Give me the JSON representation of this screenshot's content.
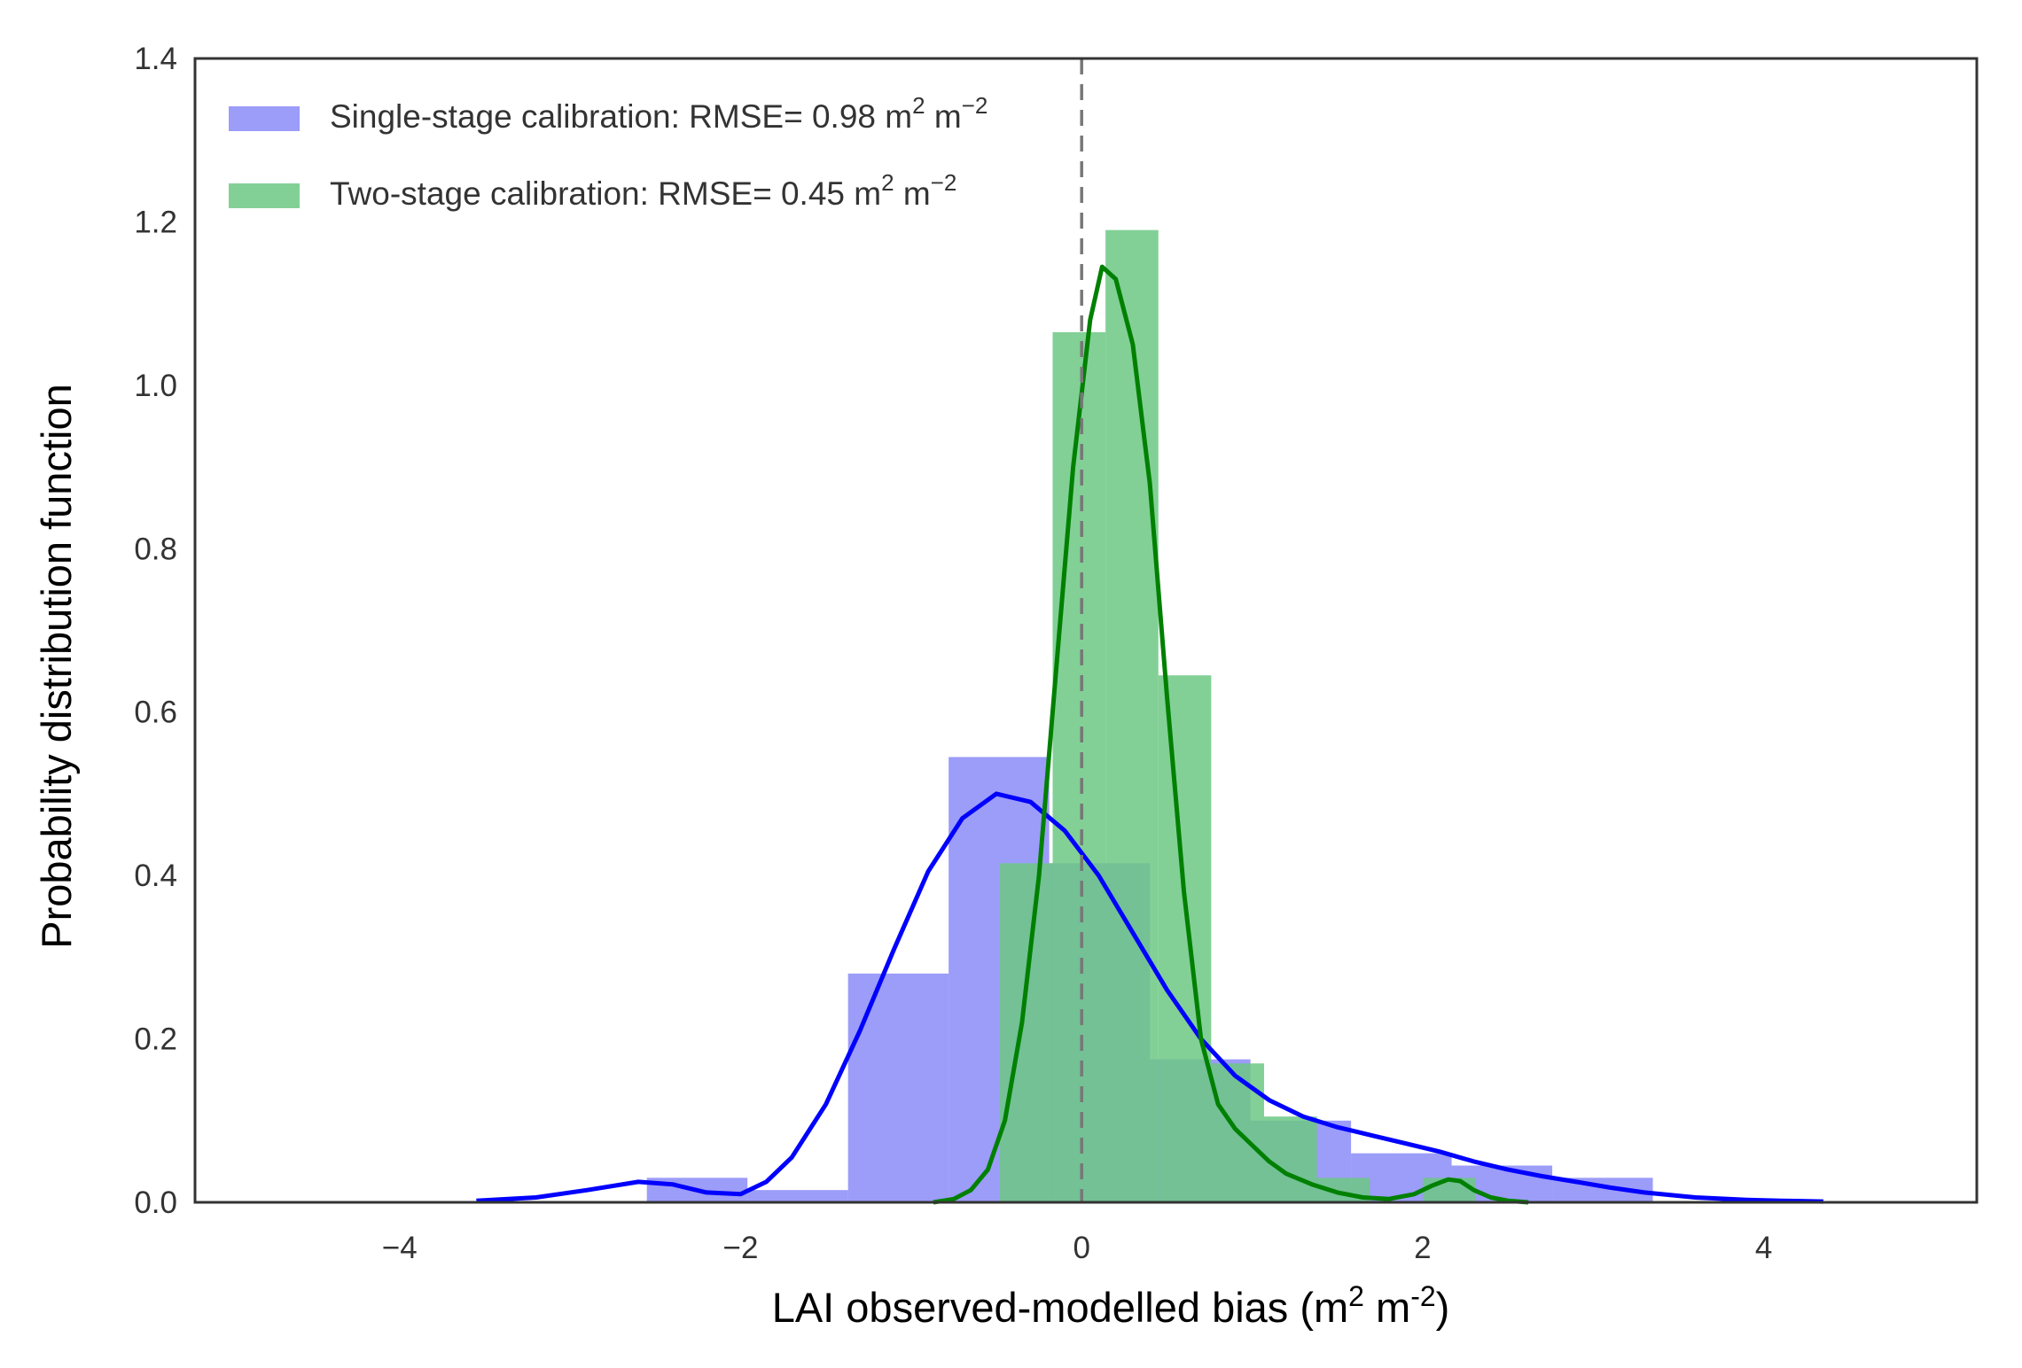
{
  "chart_data": {
    "type": "bar",
    "title": "",
    "xlabel": "LAI observed-modelled bias (m² m⁻²)",
    "xlabel_parts": {
      "main": "LAI observed-modelled bias (m",
      "sup1": "2",
      "mid": " m",
      "sup2": "-2",
      "end": ")"
    },
    "ylabel": "Probability distribution function",
    "xlim": [
      -5.2,
      5.25
    ],
    "ylim": [
      0,
      1.4
    ],
    "xticks": [
      -4,
      -2,
      0,
      2,
      4
    ],
    "xtick_labels": [
      "−4",
      "−2",
      "0",
      "2",
      "4"
    ],
    "yticks": [
      0.0,
      0.2,
      0.4,
      0.6,
      0.8,
      1.0,
      1.2,
      1.4
    ],
    "ytick_labels": [
      "0.0",
      "0.2",
      "0.4",
      "0.6",
      "0.8",
      "1.0",
      "1.2",
      "1.4"
    ],
    "reference_line_x": 0,
    "grid": false,
    "legend_position": "upper-left",
    "series": [
      {
        "name": "Single-stage calibration",
        "legend_main": "Single-stage calibration: RMSE= 0.98 m",
        "legend_sup1": "2",
        "legend_mid": " m",
        "legend_sup2": "−2",
        "color": "#0000ff",
        "hist_color": "#7b7bf7",
        "hist_bins": [
          {
            "x0": -2.55,
            "x1": -1.96,
            "y": 0.03
          },
          {
            "x0": -1.96,
            "x1": -1.37,
            "y": 0.015
          },
          {
            "x0": -1.37,
            "x1": -0.78,
            "y": 0.28
          },
          {
            "x0": -0.78,
            "x1": -0.19,
            "y": 0.545
          },
          {
            "x0": -0.19,
            "x1": 0.4,
            "y": 0.415
          },
          {
            "x0": 0.4,
            "x1": 0.99,
            "y": 0.175
          },
          {
            "x0": 0.99,
            "x1": 1.58,
            "y": 0.1
          },
          {
            "x0": 1.58,
            "x1": 2.17,
            "y": 0.06
          },
          {
            "x0": 2.17,
            "x1": 2.76,
            "y": 0.045
          },
          {
            "x0": 2.76,
            "x1": 3.35,
            "y": 0.03
          }
        ],
        "kde": {
          "x": [
            -3.55,
            -3.2,
            -2.9,
            -2.6,
            -2.4,
            -2.2,
            -2.0,
            -1.85,
            -1.7,
            -1.5,
            -1.3,
            -1.1,
            -0.9,
            -0.7,
            -0.5,
            -0.3,
            -0.1,
            0.1,
            0.3,
            0.5,
            0.7,
            0.9,
            1.1,
            1.3,
            1.5,
            1.7,
            1.9,
            2.1,
            2.3,
            2.5,
            2.7,
            2.9,
            3.1,
            3.3,
            3.6,
            3.9,
            4.1,
            4.35
          ],
          "y": [
            0.002,
            0.006,
            0.015,
            0.025,
            0.022,
            0.012,
            0.01,
            0.025,
            0.055,
            0.12,
            0.21,
            0.31,
            0.405,
            0.47,
            0.5,
            0.49,
            0.455,
            0.4,
            0.33,
            0.26,
            0.2,
            0.155,
            0.125,
            0.105,
            0.092,
            0.082,
            0.072,
            0.062,
            0.05,
            0.04,
            0.032,
            0.025,
            0.018,
            0.012,
            0.006,
            0.003,
            0.002,
            0.001
          ]
        }
      },
      {
        "name": "Two-stage calibration",
        "legend_main": "Two-stage calibration: RMSE= 0.45 m",
        "legend_sup1": "2",
        "legend_mid": " m",
        "legend_sup2": "−2",
        "color": "#008000",
        "hist_color": "#6cc884",
        "hist_bins": [
          {
            "x0": -0.48,
            "x1": -0.17,
            "y": 0.415
          },
          {
            "x0": -0.17,
            "x1": 0.14,
            "y": 1.065
          },
          {
            "x0": 0.14,
            "x1": 0.45,
            "y": 1.19
          },
          {
            "x0": 0.45,
            "x1": 0.76,
            "y": 0.645
          },
          {
            "x0": 0.76,
            "x1": 1.07,
            "y": 0.17
          },
          {
            "x0": 1.07,
            "x1": 1.38,
            "y": 0.105
          },
          {
            "x0": 1.38,
            "x1": 1.69,
            "y": 0.03
          },
          {
            "x0": 1.69,
            "x1": 2.0,
            "y": 0.0
          },
          {
            "x0": 2.0,
            "x1": 2.31,
            "y": 0.03
          }
        ],
        "kde": {
          "x": [
            -0.87,
            -0.75,
            -0.65,
            -0.55,
            -0.45,
            -0.35,
            -0.25,
            -0.15,
            -0.05,
            0.05,
            0.12,
            0.2,
            0.3,
            0.4,
            0.5,
            0.6,
            0.7,
            0.8,
            0.9,
            1.0,
            1.1,
            1.2,
            1.35,
            1.5,
            1.65,
            1.8,
            1.95,
            2.05,
            2.15,
            2.22,
            2.3,
            2.4,
            2.5,
            2.62
          ],
          "y": [
            0.0,
            0.004,
            0.015,
            0.04,
            0.1,
            0.22,
            0.4,
            0.65,
            0.9,
            1.08,
            1.145,
            1.13,
            1.05,
            0.88,
            0.62,
            0.38,
            0.2,
            0.12,
            0.09,
            0.07,
            0.05,
            0.035,
            0.022,
            0.012,
            0.006,
            0.004,
            0.01,
            0.02,
            0.028,
            0.026,
            0.015,
            0.006,
            0.002,
            0.0
          ]
        }
      }
    ]
  }
}
